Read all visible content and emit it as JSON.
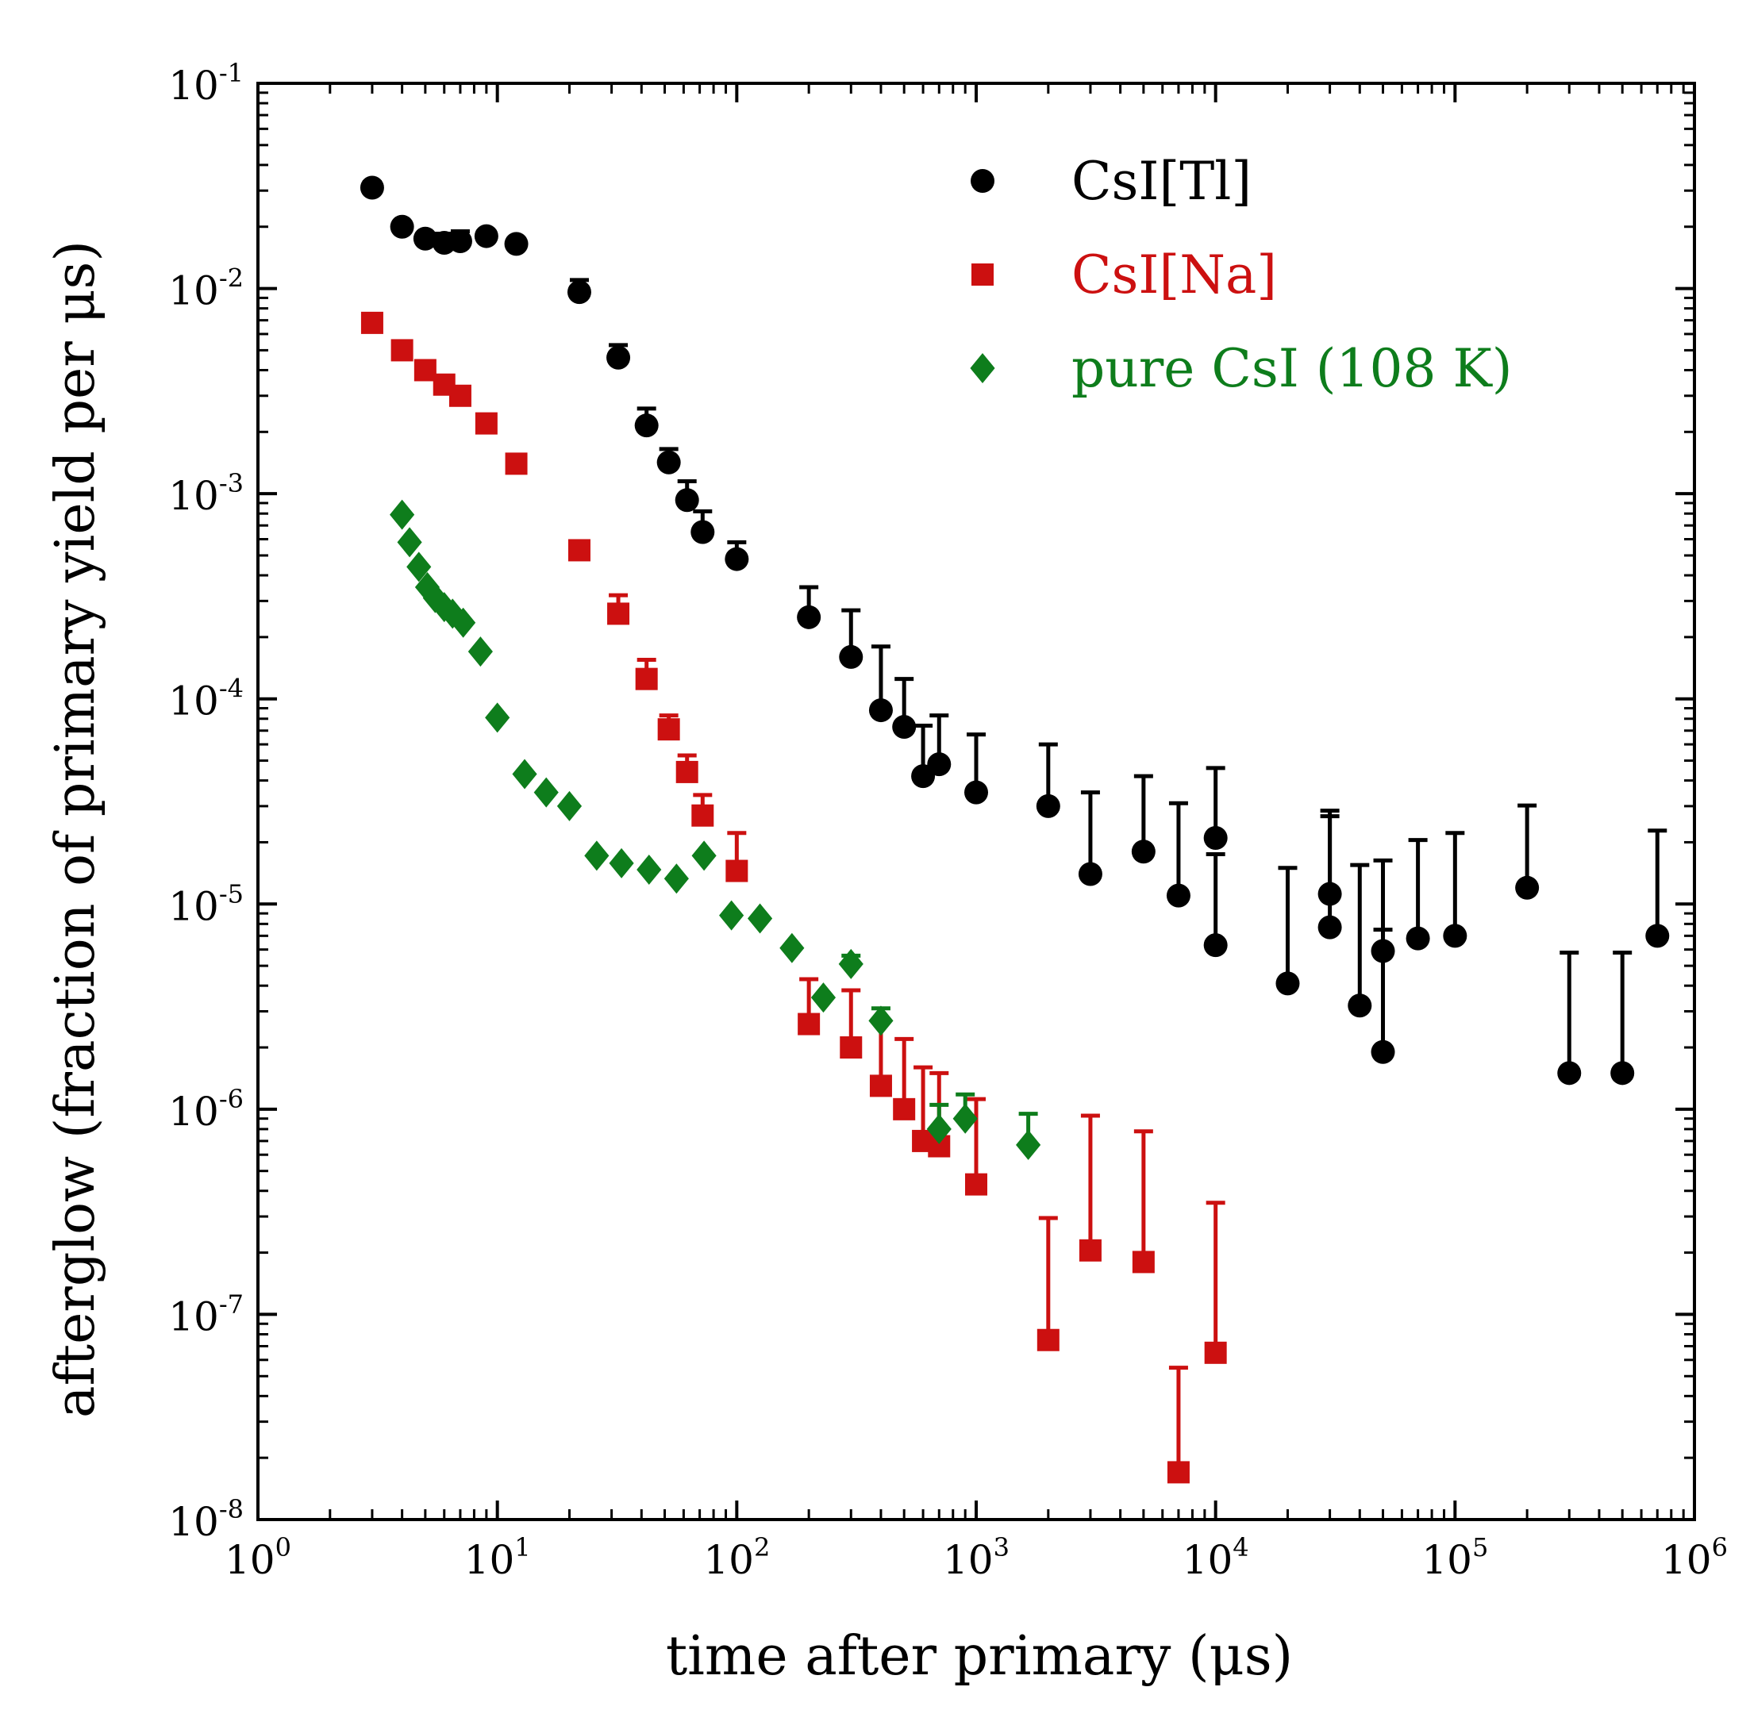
{
  "chart_data": {
    "type": "scatter",
    "title": "",
    "xlabel": "time after primary (μs)",
    "ylabel": "afterglow (fraction of primary yield per μs)",
    "xscale": "log",
    "yscale": "log",
    "xlim": [
      1,
      1000000
    ],
    "ylim": [
      1e-08,
      0.1
    ],
    "grid": false,
    "legend_position": "top-right",
    "x_ticks": [
      {
        "base": "10",
        "exp": "0",
        "value": 1
      },
      {
        "base": "10",
        "exp": "1",
        "value": 10
      },
      {
        "base": "10",
        "exp": "2",
        "value": 100
      },
      {
        "base": "10",
        "exp": "3",
        "value": 1000
      },
      {
        "base": "10",
        "exp": "4",
        "value": 10000
      },
      {
        "base": "10",
        "exp": "5",
        "value": 100000
      },
      {
        "base": "10",
        "exp": "6",
        "value": 1000000
      }
    ],
    "y_ticks": [
      {
        "base": "10",
        "exp": "-1",
        "value": 0.1
      },
      {
        "base": "10",
        "exp": "-2",
        "value": 0.01
      },
      {
        "base": "10",
        "exp": "-3",
        "value": 0.001
      },
      {
        "base": "10",
        "exp": "-4",
        "value": 0.0001
      },
      {
        "base": "10",
        "exp": "-5",
        "value": 1e-05
      },
      {
        "base": "10",
        "exp": "-6",
        "value": 1e-06
      },
      {
        "base": "10",
        "exp": "-7",
        "value": 1e-07
      },
      {
        "base": "10",
        "exp": "-8",
        "value": 1e-08
      }
    ],
    "series": [
      {
        "name": "CsI[Tl]",
        "color": "#000000",
        "marker": "circle",
        "x": [
          3,
          4,
          5,
          6,
          7,
          9,
          12,
          22,
          32,
          42,
          52,
          62,
          72,
          100,
          200,
          300,
          400,
          500,
          600,
          700,
          1000,
          2000,
          3000,
          5000,
          7000,
          10000,
          10000,
          20000,
          30000,
          30000,
          40000,
          50000,
          50000,
          70000,
          100000,
          200000,
          300000,
          500000,
          700000
        ],
        "y": [
          0.031,
          0.02,
          0.0175,
          0.0167,
          0.017,
          0.018,
          0.0165,
          0.0096,
          0.0046,
          0.00215,
          0.00142,
          0.00093,
          0.00065,
          0.00048,
          0.00025,
          0.00016,
          8.8e-05,
          7.3e-05,
          4.2e-05,
          4.8e-05,
          3.5e-05,
          3e-05,
          1.4e-05,
          1.8e-05,
          1.1e-05,
          2.1e-05,
          6.3e-06,
          4.1e-06,
          1.12e-05,
          7.7e-06,
          3.2e-06,
          5.9e-06,
          1.9e-06,
          6.8e-06,
          7e-06,
          1.2e-05,
          1.5e-06,
          1.5e-06,
          7e-06
        ],
        "y_upper": [
          0.033,
          0.021,
          0.0185,
          0.0185,
          0.019,
          0.019,
          0.0175,
          0.011,
          0.0053,
          0.0026,
          0.00165,
          0.00115,
          0.00082,
          0.00058,
          0.00035,
          0.00027,
          0.00018,
          0.000125,
          7.4e-05,
          8.3e-05,
          6.7e-05,
          6e-05,
          3.5e-05,
          4.2e-05,
          3.1e-05,
          4.6e-05,
          1.75e-05,
          1.5e-05,
          2.85e-05,
          2.68e-05,
          1.55e-05,
          1.63e-05,
          7.5e-06,
          2.05e-05,
          2.22e-05,
          3.02e-05,
          5.8e-06,
          5.8e-06,
          2.28e-05
        ]
      },
      {
        "name": "CsI[Na]",
        "color": "#cc1010",
        "marker": "square",
        "x": [
          3,
          4,
          5,
          6,
          7,
          9,
          12,
          22,
          32,
          42,
          52,
          62,
          72,
          100,
          200,
          300,
          400,
          500,
          600,
          700,
          1000,
          2000,
          3000,
          5000,
          7000,
          10000
        ],
        "y": [
          0.0068,
          0.005,
          0.004,
          0.0034,
          0.003,
          0.0022,
          0.0014,
          0.00053,
          0.00026,
          0.000125,
          7.1e-05,
          4.4e-05,
          2.7e-05,
          1.45e-05,
          2.6e-06,
          2e-06,
          1.3e-06,
          1e-06,
          7e-07,
          6.6e-07,
          4.3e-07,
          7.5e-08,
          2.05e-07,
          1.8e-07,
          1.7e-08,
          6.5e-08
        ],
        "y_upper": [
          0.007,
          0.0052,
          0.0042,
          0.0036,
          0.0032,
          0.0023,
          0.00145,
          0.00058,
          0.00032,
          0.000155,
          8.3e-05,
          5.3e-05,
          3.4e-05,
          2.22e-05,
          4.3e-06,
          3.8e-06,
          2.7e-06,
          2.2e-06,
          1.6e-06,
          1.5e-06,
          1.12e-06,
          2.95e-07,
          9.3e-07,
          7.8e-07,
          5.5e-08,
          3.5e-07
        ]
      },
      {
        "name": "pure CsI (108 K)",
        "color": "#0e7d1c",
        "marker": "diamond",
        "x": [
          4,
          4.3,
          4.7,
          5.1,
          5.5,
          6,
          6.5,
          7.2,
          8.5,
          10,
          13,
          16,
          20,
          26,
          33,
          43,
          56,
          73,
          95,
          125,
          170,
          230,
          300,
          400,
          700,
          900,
          1650
        ],
        "y": [
          0.00079,
          0.00058,
          0.00044,
          0.00035,
          0.00031,
          0.00028,
          0.00026,
          0.000235,
          0.00017,
          8.1e-05,
          4.3e-05,
          3.5e-05,
          3e-05,
          1.72e-05,
          1.58e-05,
          1.47e-05,
          1.33e-05,
          1.72e-05,
          8.8e-06,
          8.5e-06,
          6.1e-06,
          3.5e-06,
          5.1e-06,
          2.7e-06,
          8e-07,
          9e-07,
          6.7e-07
        ],
        "y_upper": [
          null,
          null,
          null,
          null,
          null,
          null,
          null,
          null,
          null,
          null,
          null,
          null,
          null,
          null,
          null,
          null,
          null,
          null,
          null,
          null,
          null,
          null,
          5.6e-06,
          3.1e-06,
          1.05e-06,
          1.18e-06,
          9.5e-07
        ]
      }
    ]
  }
}
